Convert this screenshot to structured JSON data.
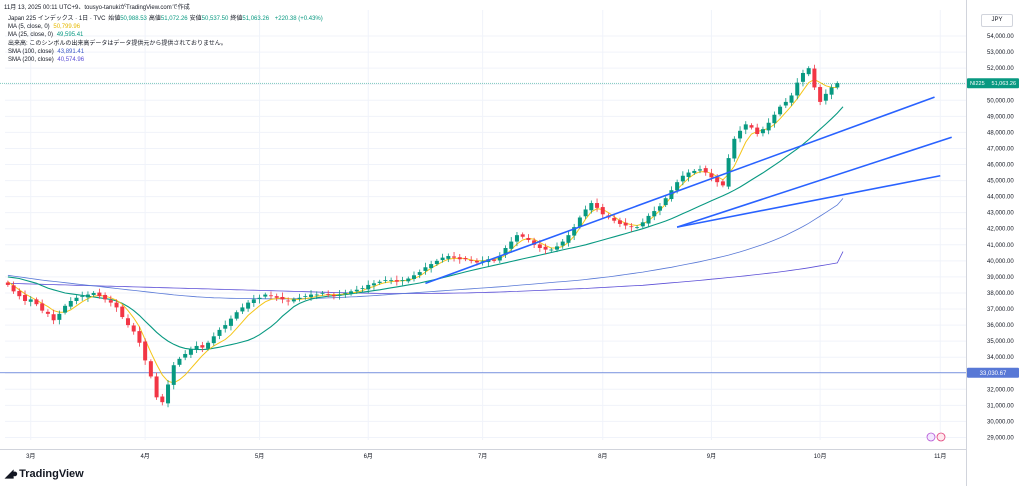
{
  "header": {
    "topline": "11月 13, 2025 00:11 UTC+9、tousyo-tanukiがTradingView.comで作成",
    "symbol_line_title": "Japan 225 インデックス · 1日 · TVC",
    "ohlc": [
      {
        "label": "始値",
        "value": "50,988.53"
      },
      {
        "label": "高値",
        "value": "51,072.26"
      },
      {
        "label": "安値",
        "value": "50,537.50"
      },
      {
        "label": "終値",
        "value": "51,063.26"
      }
    ],
    "change": "+220.38 (+0.43%)",
    "ma5": {
      "label": "MA (5, close, 0)",
      "value": "50,799.96",
      "color": "#e6b800"
    },
    "ma25": {
      "label": "MA (25, close, 0)",
      "value": "49,595.41",
      "color": "#089981"
    },
    "volume_notice": "出来高: このシンボルの出来高データはデータ提供元から提供されておりません。",
    "sma100": {
      "label": "SMA (100, close)",
      "value": "43,891.41",
      "color": "#3d5ac6"
    },
    "sma200": {
      "label": "SMA (200, close)",
      "value": "40,574.96",
      "color": "#5b4ed6"
    },
    "currency": "JPY",
    "brand": "TradingView"
  },
  "chart_data": {
    "type": "candlestick",
    "symbol": "NI225",
    "last_price": "51,063.26",
    "horizontal_level": "33,030.67",
    "ylim": [
      28500,
      55000
    ],
    "y_ticks": [
      "29,000.00",
      "30,000.00",
      "31,000.00",
      "32,000.00",
      "33,000.00",
      "34,000.00",
      "35,000.00",
      "36,000.00",
      "37,000.00",
      "38,000.00",
      "39,000.00",
      "40,000.00",
      "41,000.00",
      "42,000.00",
      "43,000.00",
      "44,000.00",
      "45,000.00",
      "46,000.00",
      "47,000.00",
      "48,000.00",
      "49,000.00",
      "50,000.00",
      "51,000.00",
      "52,000.00",
      "53,000.00",
      "54,000.00"
    ],
    "x_ticks": [
      {
        "label": "3月",
        "index": 4
      },
      {
        "label": "4月",
        "index": 24
      },
      {
        "label": "5月",
        "index": 44
      },
      {
        "label": "6月",
        "index": 63
      },
      {
        "label": "7月",
        "index": 83
      },
      {
        "label": "8月",
        "index": 104
      },
      {
        "label": "9月",
        "index": 123
      },
      {
        "label": "10月",
        "index": 142
      },
      {
        "label": "11月",
        "index": 163
      }
    ],
    "colors": {
      "up": "#089981",
      "down": "#f23645",
      "ma5": "#f5c518",
      "ma25": "#089981",
      "sma100": "#5878d6",
      "sma200": "#5b4ed6",
      "trend": "#2962ff",
      "price_line": "#089981",
      "level": "#5878d6"
    },
    "closes": [
      38500,
      38100,
      37800,
      37500,
      37600,
      37300,
      36900,
      36700,
      36300,
      36700,
      37200,
      37500,
      37700,
      37800,
      37900,
      38000,
      37800,
      37600,
      37400,
      37100,
      36500,
      36000,
      35600,
      34900,
      33800,
      32800,
      31500,
      31200,
      32300,
      33500,
      33900,
      34200,
      34500,
      34700,
      34600,
      34900,
      35300,
      35700,
      36000,
      36400,
      36800,
      37100,
      37400,
      37600,
      37700,
      37900,
      37800,
      37700,
      37600,
      37500,
      37600,
      37700,
      37800,
      37900,
      37900,
      38000,
      37900,
      37800,
      37900,
      38000,
      38100,
      38200,
      38300,
      38500,
      38600,
      38700,
      38800,
      38800,
      38700,
      38800,
      38900,
      39100,
      39300,
      39600,
      39800,
      40000,
      40200,
      40300,
      40200,
      40100,
      40100,
      40000,
      39900,
      40000,
      40100,
      40000,
      40300,
      40800,
      41200,
      41600,
      41500,
      41300,
      41000,
      40800,
      40700,
      40700,
      40900,
      41200,
      41600,
      42100,
      42700,
      43200,
      43600,
      43300,
      42900,
      42700,
      42500,
      42300,
      42200,
      42100,
      42100,
      42400,
      42800,
      43100,
      43400,
      43900,
      44400,
      44900,
      45300,
      45500,
      45600,
      45700,
      45500,
      45200,
      44900,
      44700,
      46400,
      47600,
      48100,
      48500,
      48300,
      47900,
      48200,
      48600,
      49100,
      49600,
      49900,
      50300,
      51100,
      51700,
      52000,
      50800,
      49900,
      50400,
      50800,
      51063
    ],
    "ma5": [
      38700,
      38450,
      38200,
      37950,
      37750,
      37550,
      37350,
      37150,
      36900,
      36800,
      36800,
      36950,
      37200,
      37450,
      37650,
      37800,
      37850,
      37800,
      37700,
      37550,
      37300,
      36900,
      36450,
      35900,
      35100,
      34300,
      33550,
      32900,
      32500,
      32400,
      32600,
      32900,
      33300,
      33700,
      34100,
      34450,
      34700,
      34900,
      35100,
      35400,
      35800,
      36200,
      36600,
      36900,
      37200,
      37450,
      37600,
      37650,
      37700,
      37650,
      37600,
      37600,
      37650,
      37700,
      37800,
      37850,
      37900,
      37900,
      37900,
      37950,
      38000,
      38050,
      38150,
      38300,
      38400,
      38550,
      38650,
      38700,
      38750,
      38750,
      38800,
      38900,
      39050,
      39300,
      39550,
      39750,
      39950,
      40100,
      40150,
      40150,
      40150,
      40050,
      40000,
      40000,
      40050,
      40100,
      40150,
      40350,
      40700,
      41050,
      41300,
      41400,
      41350,
      41150,
      40950,
      40800,
      40800,
      40900,
      41150,
      41550,
      42050,
      42600,
      43050,
      43250,
      43200,
      43000,
      42750,
      42500,
      42350,
      42250,
      42200,
      42300,
      42500,
      42800,
      43150,
      43550,
      44000,
      44450,
      44800,
      45150,
      45400,
      45550,
      45550,
      45450,
      45250,
      45050,
      45400,
      45900,
      46650,
      47400,
      47900,
      48050,
      48150,
      48250,
      48500,
      48850,
      49250,
      49650,
      50100,
      50600,
      51100,
      51300,
      51100,
      50900,
      50800,
      50799
    ],
    "ma25": [
      39000,
      38950,
      38900,
      38800,
      38700,
      38600,
      38450,
      38300,
      38200,
      38100,
      38000,
      37950,
      37900,
      37850,
      37800,
      37750,
      37700,
      37650,
      37600,
      37500,
      37350,
      37150,
      36900,
      36600,
      36250,
      35900,
      35550,
      35250,
      35000,
      34800,
      34650,
      34550,
      34500,
      34480,
      34470,
      34500,
      34560,
      34620,
      34700,
      34780,
      34860,
      34950,
      35050,
      35200,
      35400,
      35650,
      35900,
      36200,
      36550,
      36850,
      37150,
      37350,
      37500,
      37620,
      37700,
      37750,
      37800,
      37830,
      37860,
      37900,
      37950,
      38000,
      38050,
      38100,
      38150,
      38200,
      38260,
      38320,
      38380,
      38440,
      38500,
      38560,
      38620,
      38700,
      38780,
      38860,
      38950,
      39040,
      39130,
      39220,
      39310,
      39400,
      39480,
      39560,
      39640,
      39720,
      39800,
      39880,
      39960,
      40040,
      40120,
      40200,
      40280,
      40360,
      40440,
      40520,
      40600,
      40680,
      40760,
      40840,
      40920,
      41000,
      41100,
      41200,
      41300,
      41400,
      41500,
      41600,
      41700,
      41800,
      41900,
      42000,
      42120,
      42240,
      42360,
      42480,
      42620,
      42780,
      42940,
      43100,
      43260,
      43420,
      43580,
      43740,
      43900,
      44050,
      44220,
      44400,
      44600,
      44820,
      45040,
      45260,
      45480,
      45720,
      45960,
      46200,
      46460,
      46720,
      46980,
      47260,
      47560,
      47880,
      48200,
      48520,
      48850,
      49200,
      49595
    ],
    "sma100": [
      39100,
      39050,
      39000,
      38950,
      38900,
      38850,
      38800,
      38760,
      38720,
      38680,
      38640,
      38600,
      38560,
      38520,
      38480,
      38440,
      38400,
      38360,
      38320,
      38280,
      38240,
      38200,
      38160,
      38120,
      38080,
      38040,
      38000,
      37960,
      37920,
      37880,
      37850,
      37820,
      37790,
      37760,
      37740,
      37720,
      37700,
      37690,
      37680,
      37670,
      37660,
      37655,
      37650,
      37645,
      37640,
      37638,
      37636,
      37635,
      37635,
      37638,
      37642,
      37648,
      37655,
      37662,
      37670,
      37680,
      37692,
      37705,
      37720,
      37736,
      37752,
      37770,
      37790,
      37812,
      37835,
      37860,
      37885,
      37910,
      37935,
      37960,
      37985,
      38010,
      38035,
      38060,
      38085,
      38110,
      38135,
      38160,
      38185,
      38210,
      38235,
      38260,
      38285,
      38310,
      38335,
      38360,
      38385,
      38410,
      38440,
      38470,
      38500,
      38530,
      38560,
      38590,
      38620,
      38650,
      38680,
      38710,
      38740,
      38770,
      38800,
      38840,
      38880,
      38920,
      38960,
      39000,
      39050,
      39100,
      39150,
      39200,
      39250,
      39300,
      39360,
      39420,
      39480,
      39540,
      39600,
      39670,
      39740,
      39810,
      39880,
      39950,
      40030,
      40110,
      40190,
      40270,
      40360,
      40460,
      40560,
      40670,
      40780,
      40900,
      41020,
      41150,
      41290,
      41440,
      41600,
      41770,
      41950,
      42140,
      42340,
      42560,
      42790,
      43020,
      43250,
      43480,
      43891
    ],
    "sma200": [
      38600,
      38590,
      38580,
      38570,
      38560,
      38550,
      38540,
      38530,
      38520,
      38510,
      38500,
      38490,
      38480,
      38470,
      38460,
      38450,
      38440,
      38430,
      38420,
      38410,
      38400,
      38390,
      38380,
      38370,
      38360,
      38350,
      38340,
      38330,
      38320,
      38310,
      38300,
      38290,
      38280,
      38270,
      38260,
      38250,
      38240,
      38230,
      38220,
      38210,
      38200,
      38190,
      38180,
      38170,
      38160,
      38150,
      38140,
      38130,
      38120,
      38110,
      38100,
      38090,
      38080,
      38070,
      38060,
      38050,
      38040,
      38030,
      38020,
      38010,
      38000,
      37995,
      37990,
      37985,
      37980,
      37975,
      37970,
      37968,
      37966,
      37965,
      37965,
      37966,
      37968,
      37970,
      37973,
      37976,
      37980,
      37985,
      37990,
      37995,
      38000,
      38010,
      38020,
      38030,
      38040,
      38050,
      38062,
      38075,
      38088,
      38100,
      38115,
      38130,
      38145,
      38160,
      38175,
      38190,
      38205,
      38220,
      38235,
      38250,
      38265,
      38280,
      38300,
      38320,
      38340,
      38360,
      38380,
      38400,
      38420,
      38440,
      38460,
      38480,
      38510,
      38540,
      38570,
      38600,
      38630,
      38660,
      38690,
      38720,
      38750,
      38785,
      38820,
      38855,
      38890,
      38925,
      38960,
      38995,
      39030,
      39070,
      39110,
      39150,
      39190,
      39230,
      39270,
      39310,
      39360,
      39410,
      39460,
      39510,
      39570,
      39630,
      39690,
      39750,
      39810,
      39870,
      40574
    ],
    "trend_lines": [
      {
        "from": {
          "index": 73,
          "price": 38600
        },
        "to": {
          "index": 162,
          "price": 50200
        }
      },
      {
        "from": {
          "index": 117,
          "price": 42100
        },
        "to": {
          "index": 165,
          "price": 47700
        }
      },
      {
        "from": {
          "index": 117,
          "price": 42100
        },
        "to": {
          "index": 163,
          "price": 45300
        }
      }
    ]
  }
}
